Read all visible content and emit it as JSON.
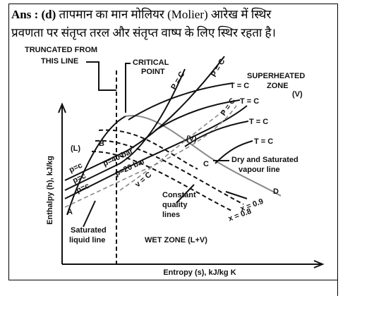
{
  "answer": {
    "prefix": "Ans : (d)",
    "line1": "तापमान का मान मोलियर (Molier) आरेख में स्थिर",
    "line2": "प्रवणता पर संतृप्त तरल और संतृप्त वाष्प के लिए स्थिर रहता है।"
  },
  "diagram": {
    "y_axis_label": "Enthalpy (h), kJ/kg",
    "x_axis_label": "Entropy (s), kJ/kg K",
    "truncated": [
      "TRUNCATED FROM",
      "THIS LINE"
    ],
    "critical": [
      "CRITICAL",
      "POINT"
    ],
    "superheated": [
      "SUPERHEATED",
      "ZONE",
      "(V)"
    ],
    "pressure_lines": [
      "P = C",
      "P = C",
      "P = C"
    ],
    "temperature_lines": [
      "T = C",
      "T = C",
      "T = C",
      "T = C"
    ],
    "liquid_zone": "(L)",
    "vapour_mark": "(V)",
    "points": [
      "A",
      "B",
      "C",
      "D"
    ],
    "left_pressures": [
      "p=c",
      "p=c",
      "p=c",
      "p=40 bar",
      "p=20 bar"
    ],
    "volume_line": "v = C",
    "dry_vapour": [
      "Dry and Saturated",
      "vapour line"
    ],
    "quality": [
      "Constant",
      "quality",
      "lines"
    ],
    "dryness": [
      "x = 0.9",
      "x = 0.8"
    ],
    "saturated_liquid": [
      "Saturated",
      "liquid line"
    ],
    "wet_zone": "WET ZONE (L+V)"
  }
}
